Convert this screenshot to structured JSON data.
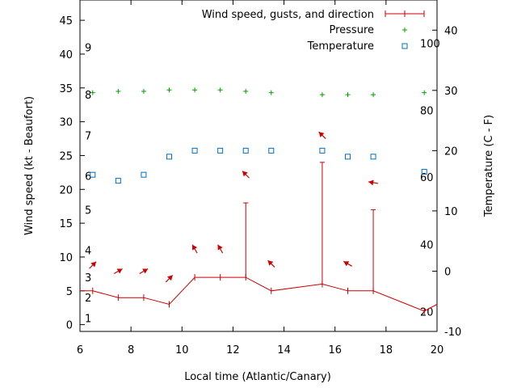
{
  "chart_data": {
    "type": "line",
    "xlabel": "Local time (Atlantic/Canary)",
    "ylabel": "Wind speed (kt - Beaufort)",
    "y2label": "Temperature (C - F)",
    "xlim": [
      6,
      20
    ],
    "ylim": [
      -1,
      48
    ],
    "y2lim": [
      -10,
      45
    ],
    "x_ticks": [
      "6",
      "8",
      "10",
      "12",
      "14",
      "16",
      "18",
      "20"
    ],
    "x_tick_values": [
      6,
      8,
      10,
      12,
      14,
      16,
      18,
      20
    ],
    "y_ticks": [
      "0",
      "5",
      "10",
      "15",
      "20",
      "25",
      "30",
      "35",
      "40",
      "45"
    ],
    "y_tick_values": [
      0,
      5,
      10,
      15,
      20,
      25,
      30,
      35,
      40,
      45
    ],
    "y2_ticks": [
      "-10",
      "0",
      "10",
      "20",
      "30",
      "40"
    ],
    "y2_tick_values": [
      -10,
      0,
      10,
      20,
      30,
      40
    ],
    "beaufort_labels": [
      {
        "text": "1",
        "kt": 1
      },
      {
        "text": "2",
        "kt": 4
      },
      {
        "text": "3",
        "kt": 7
      },
      {
        "text": "4",
        "kt": 11
      },
      {
        "text": "5",
        "kt": 17
      },
      {
        "text": "6",
        "kt": 22
      },
      {
        "text": "7",
        "kt": 28
      },
      {
        "text": "8",
        "kt": 34
      },
      {
        "text": "9",
        "kt": 41
      }
    ],
    "fahrenheit_labels": [
      {
        "text": "20",
        "c": -6.7
      },
      {
        "text": "40",
        "c": 4.4
      },
      {
        "text": "60",
        "c": 15.6
      },
      {
        "text": "80",
        "c": 26.7
      },
      {
        "text": "100",
        "c": 37.8
      }
    ],
    "legend": {
      "position": "top-right",
      "wind": "Wind speed, gusts, and direction",
      "pressure": "Pressure",
      "temperature": "Temperature"
    },
    "colors": {
      "wind": "#cc0000",
      "pressure": "#00a000",
      "temperature": "#0070c0"
    },
    "series": [
      {
        "name": "Wind speed",
        "x": [
          6,
          6.5,
          7.5,
          8.5,
          9.5,
          10.5,
          11.5,
          12.5,
          13.5,
          15.5,
          16.5,
          17.5,
          19.5,
          20
        ],
        "values": [
          5,
          5,
          4,
          4,
          3,
          7,
          7,
          7,
          5,
          6,
          5,
          5,
          2,
          3
        ]
      },
      {
        "name": "Gusts",
        "x": [
          12.5,
          15.5,
          17.5
        ],
        "values": [
          18,
          24,
          17
        ]
      },
      {
        "name": "Wind direction (deg, from)",
        "x": [
          6.5,
          7.5,
          8.5,
          9.5,
          10.5,
          11.5,
          12.5,
          13.5,
          15.5,
          16.5,
          17.5
        ],
        "y_kt": [
          8.8,
          7.9,
          7.9,
          6.8,
          11.2,
          11.2,
          22.2,
          9.0,
          28.0,
          9.0,
          21.0
        ],
        "values": [
          225,
          240,
          240,
          225,
          150,
          150,
          135,
          135,
          135,
          120,
          100
        ]
      },
      {
        "name": "Pressure",
        "x": [
          6.5,
          7.5,
          8.5,
          9.5,
          10.5,
          11.5,
          12.5,
          13.5,
          15.5,
          16.5,
          17.5,
          19.5
        ],
        "values": [
          34.3,
          34.5,
          34.5,
          34.7,
          34.7,
          34.7,
          34.5,
          34.3,
          34.0,
          34.0,
          34.0,
          34.3
        ]
      },
      {
        "name": "Temperature",
        "x": [
          6.5,
          7.5,
          8.5,
          9.5,
          10.5,
          11.5,
          12.5,
          13.5,
          15.5,
          16.5,
          17.5,
          19.5
        ],
        "values": [
          16,
          15,
          16,
          19,
          20,
          20,
          20,
          20,
          20,
          19,
          19,
          16.5
        ]
      }
    ]
  }
}
